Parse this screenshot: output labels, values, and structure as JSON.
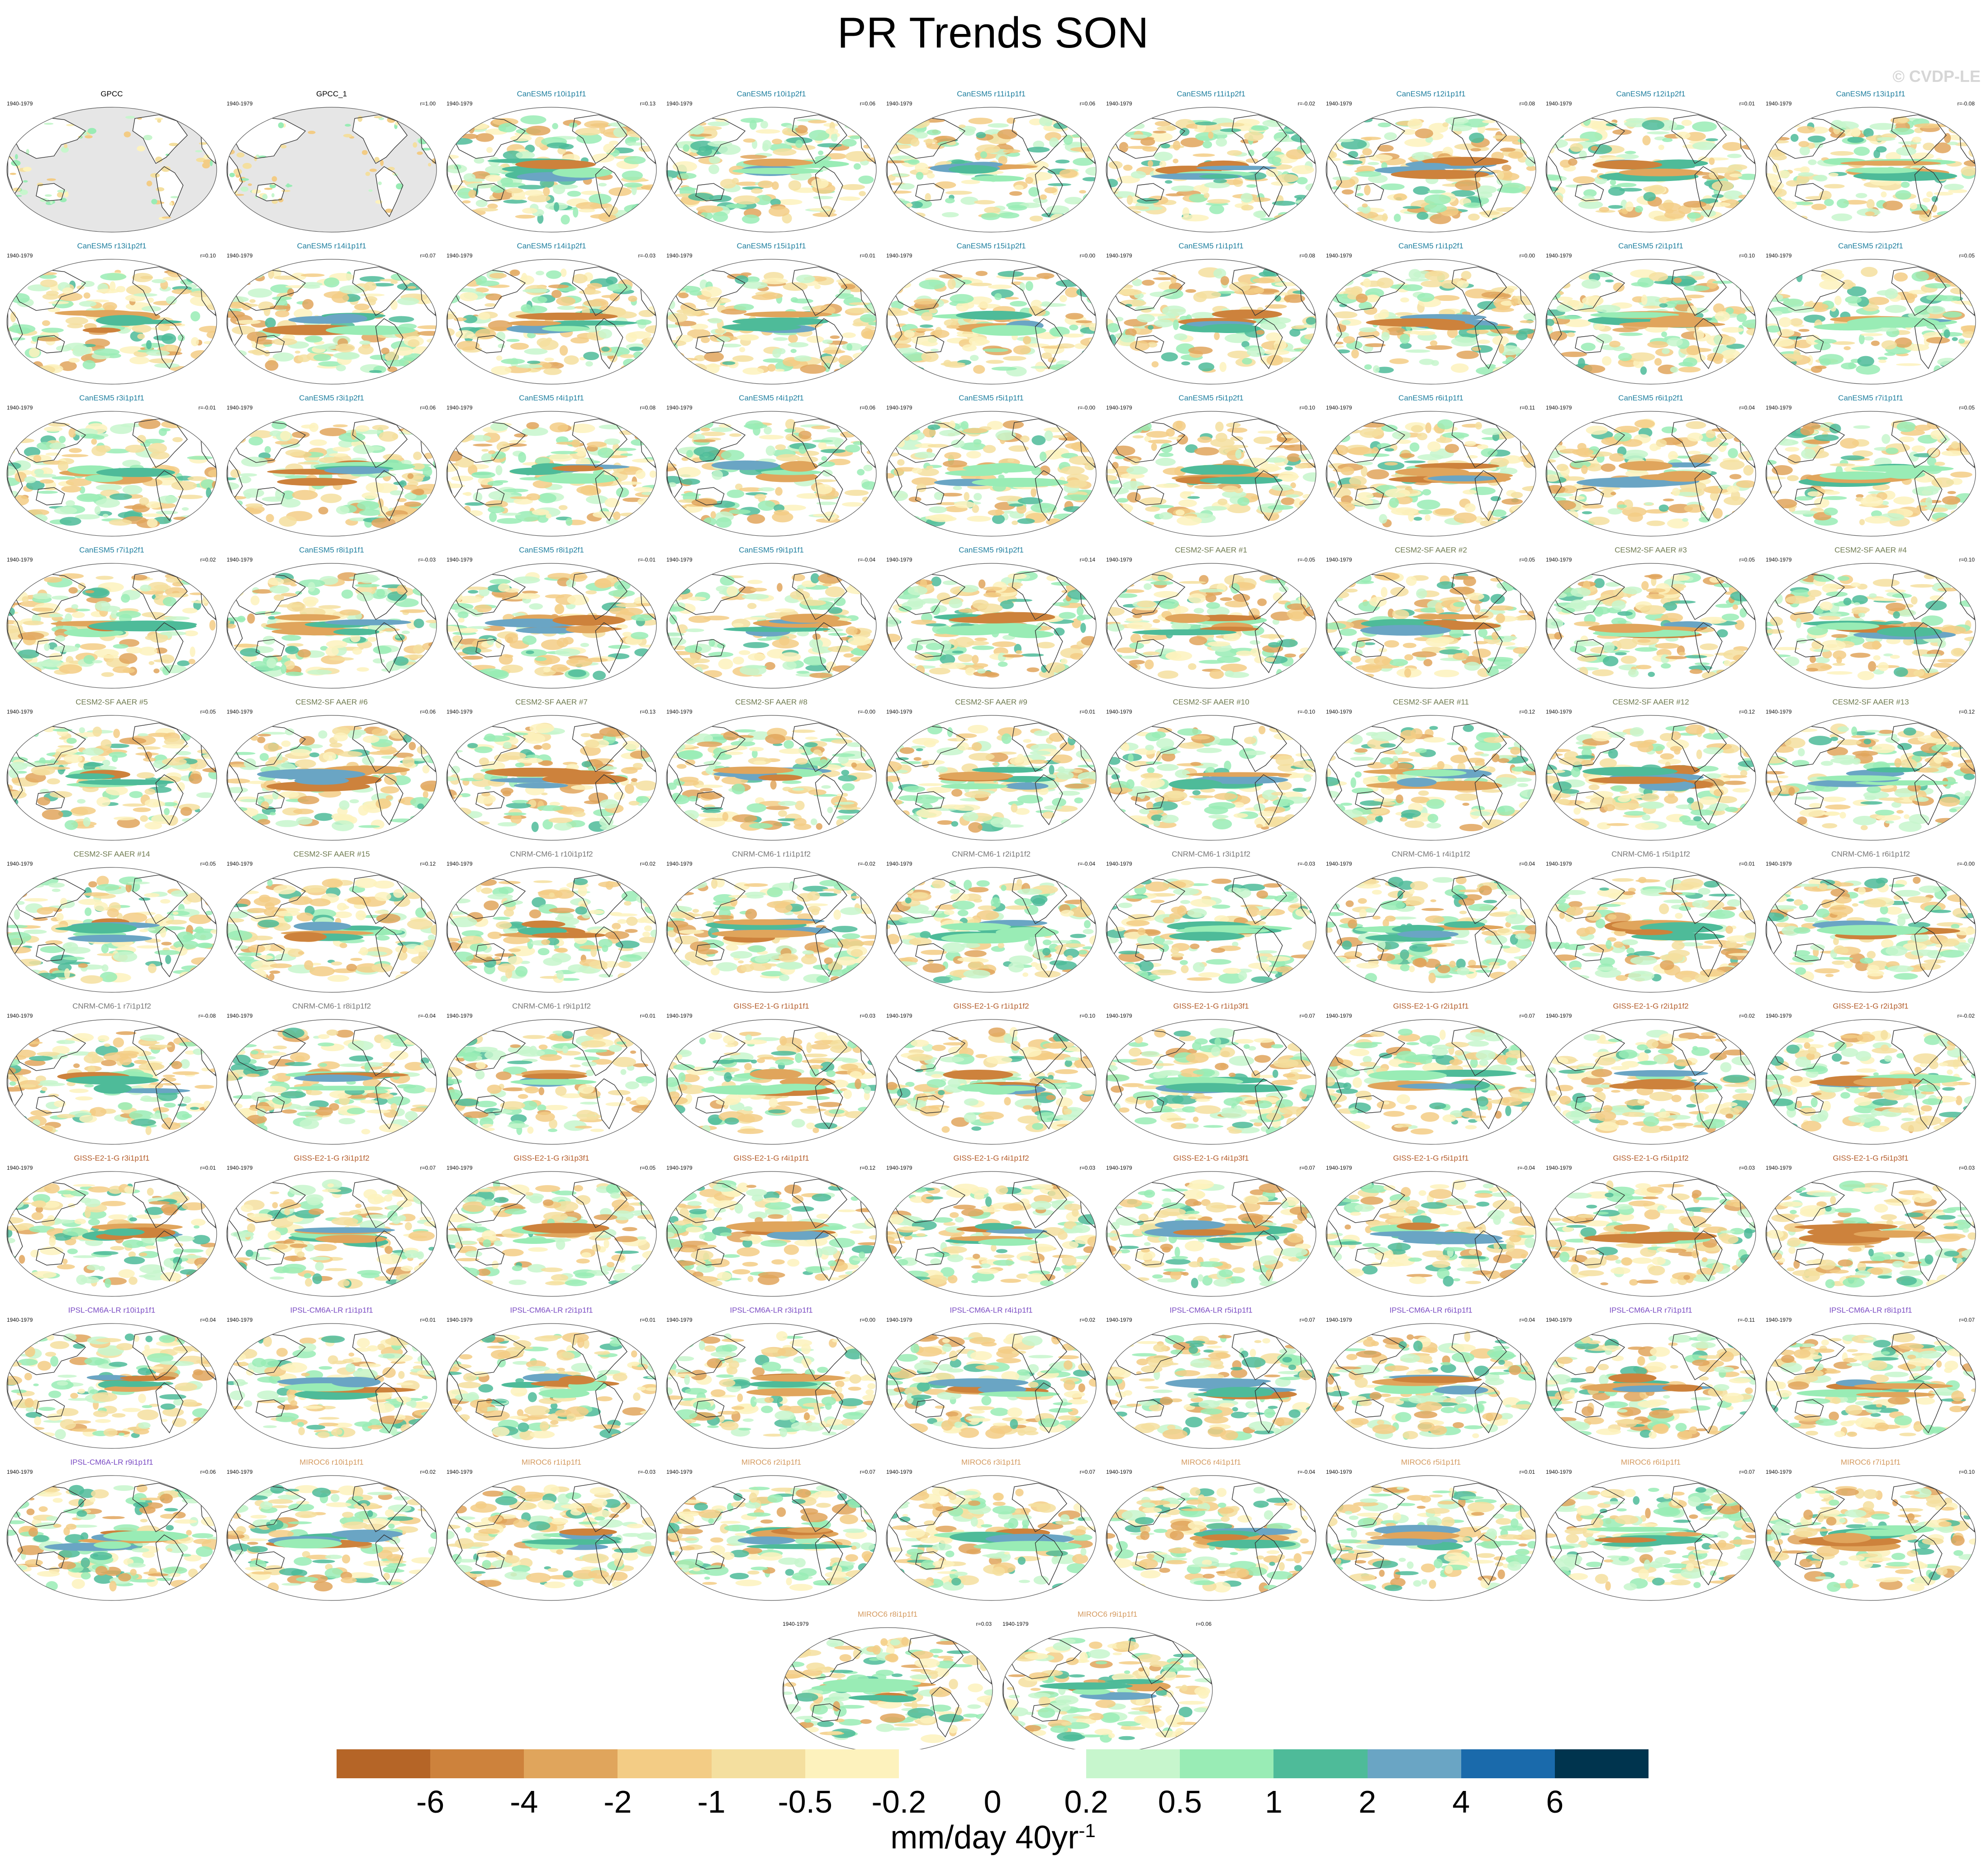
{
  "title": "PR Trends SON",
  "watermark": "© CVDP-LE",
  "colors": {
    "canesm": "#1f7f9f",
    "cesm": "#6e7a4f",
    "cnrm": "#777777",
    "giss": "#b35c2a",
    "ipsl": "#7b4cc4",
    "miroc": "#d49a5f",
    "obs": "#000000",
    "ocean_obs": "#e6e6e6",
    "coast": "#333333"
  },
  "panels": [
    {
      "title": "GPCC",
      "years": "1940-1979",
      "r": "",
      "group": "obs"
    },
    {
      "title": "GPCC_1",
      "years": "1940-1979",
      "r": "r=1.00",
      "group": "obs"
    },
    {
      "title": "CanESM5 r10i1p1f1",
      "years": "1940-1979",
      "r": "r=0.13",
      "group": "canesm"
    },
    {
      "title": "CanESM5 r10i1p2f1",
      "years": "1940-1979",
      "r": "r=0.06",
      "group": "canesm"
    },
    {
      "title": "CanESM5 r11i1p1f1",
      "years": "1940-1979",
      "r": "r=0.06",
      "group": "canesm"
    },
    {
      "title": "CanESM5 r11i1p2f1",
      "years": "1940-1979",
      "r": "r=-0.02",
      "group": "canesm"
    },
    {
      "title": "CanESM5 r12i1p1f1",
      "years": "1940-1979",
      "r": "r=0.08",
      "group": "canesm"
    },
    {
      "title": "CanESM5 r12i1p2f1",
      "years": "1940-1979",
      "r": "r=0.01",
      "group": "canesm"
    },
    {
      "title": "CanESM5 r13i1p1f1",
      "years": "1940-1979",
      "r": "r=-0.08",
      "group": "canesm"
    },
    {
      "title": "CanESM5 r13i1p2f1",
      "years": "1940-1979",
      "r": "r=0.10",
      "group": "canesm"
    },
    {
      "title": "CanESM5 r14i1p1f1",
      "years": "1940-1979",
      "r": "r=0.07",
      "group": "canesm"
    },
    {
      "title": "CanESM5 r14i1p2f1",
      "years": "1940-1979",
      "r": "r=-0.03",
      "group": "canesm"
    },
    {
      "title": "CanESM5 r15i1p1f1",
      "years": "1940-1979",
      "r": "r=0.01",
      "group": "canesm"
    },
    {
      "title": "CanESM5 r15i1p2f1",
      "years": "1940-1979",
      "r": "r=0.00",
      "group": "canesm"
    },
    {
      "title": "CanESM5 r1i1p1f1",
      "years": "1940-1979",
      "r": "r=0.08",
      "group": "canesm"
    },
    {
      "title": "CanESM5 r1i1p2f1",
      "years": "1940-1979",
      "r": "r=0.00",
      "group": "canesm"
    },
    {
      "title": "CanESM5 r2i1p1f1",
      "years": "1940-1979",
      "r": "r=0.10",
      "group": "canesm"
    },
    {
      "title": "CanESM5 r2i1p2f1",
      "years": "1940-1979",
      "r": "r=0.05",
      "group": "canesm"
    },
    {
      "title": "CanESM5 r3i1p1f1",
      "years": "1940-1979",
      "r": "r=-0.01",
      "group": "canesm"
    },
    {
      "title": "CanESM5 r3i1p2f1",
      "years": "1940-1979",
      "r": "r=0.06",
      "group": "canesm"
    },
    {
      "title": "CanESM5 r4i1p1f1",
      "years": "1940-1979",
      "r": "r=0.08",
      "group": "canesm"
    },
    {
      "title": "CanESM5 r4i1p2f1",
      "years": "1940-1979",
      "r": "r=0.06",
      "group": "canesm"
    },
    {
      "title": "CanESM5 r5i1p1f1",
      "years": "1940-1979",
      "r": "r=-0.00",
      "group": "canesm"
    },
    {
      "title": "CanESM5 r5i1p2f1",
      "years": "1940-1979",
      "r": "r=0.10",
      "group": "canesm"
    },
    {
      "title": "CanESM5 r6i1p1f1",
      "years": "1940-1979",
      "r": "r=0.11",
      "group": "canesm"
    },
    {
      "title": "CanESM5 r6i1p2f1",
      "years": "1940-1979",
      "r": "r=0.04",
      "group": "canesm"
    },
    {
      "title": "CanESM5 r7i1p1f1",
      "years": "1940-1979",
      "r": "r=0.05",
      "group": "canesm"
    },
    {
      "title": "CanESM5 r7i1p2f1",
      "years": "1940-1979",
      "r": "r=0.02",
      "group": "canesm"
    },
    {
      "title": "CanESM5 r8i1p1f1",
      "years": "1940-1979",
      "r": "r=-0.03",
      "group": "canesm"
    },
    {
      "title": "CanESM5 r8i1p2f1",
      "years": "1940-1979",
      "r": "r=-0.01",
      "group": "canesm"
    },
    {
      "title": "CanESM5 r9i1p1f1",
      "years": "1940-1979",
      "r": "r=-0.04",
      "group": "canesm"
    },
    {
      "title": "CanESM5 r9i1p2f1",
      "years": "1940-1979",
      "r": "r=0.14",
      "group": "canesm"
    },
    {
      "title": "CESM2-SF AAER #1",
      "years": "1940-1979",
      "r": "r=-0.05",
      "group": "cesm"
    },
    {
      "title": "CESM2-SF AAER #2",
      "years": "1940-1979",
      "r": "r=0.05",
      "group": "cesm"
    },
    {
      "title": "CESM2-SF AAER #3",
      "years": "1940-1979",
      "r": "r=0.05",
      "group": "cesm"
    },
    {
      "title": "CESM2-SF AAER #4",
      "years": "1940-1979",
      "r": "r=0.10",
      "group": "cesm"
    },
    {
      "title": "CESM2-SF AAER #5",
      "years": "1940-1979",
      "r": "r=0.05",
      "group": "cesm"
    },
    {
      "title": "CESM2-SF AAER #6",
      "years": "1940-1979",
      "r": "r=0.06",
      "group": "cesm"
    },
    {
      "title": "CESM2-SF AAER #7",
      "years": "1940-1979",
      "r": "r=0.13",
      "group": "cesm"
    },
    {
      "title": "CESM2-SF AAER #8",
      "years": "1940-1979",
      "r": "r=-0.00",
      "group": "cesm"
    },
    {
      "title": "CESM2-SF AAER #9",
      "years": "1940-1979",
      "r": "r=0.01",
      "group": "cesm"
    },
    {
      "title": "CESM2-SF AAER #10",
      "years": "1940-1979",
      "r": "r=-0.10",
      "group": "cesm"
    },
    {
      "title": "CESM2-SF AAER #11",
      "years": "1940-1979",
      "r": "r=0.12",
      "group": "cesm"
    },
    {
      "title": "CESM2-SF AAER #12",
      "years": "1940-1979",
      "r": "r=0.12",
      "group": "cesm"
    },
    {
      "title": "CESM2-SF AAER #13",
      "years": "1940-1979",
      "r": "r=0.12",
      "group": "cesm"
    },
    {
      "title": "CESM2-SF AAER #14",
      "years": "1940-1979",
      "r": "r=0.05",
      "group": "cesm"
    },
    {
      "title": "CESM2-SF AAER #15",
      "years": "1940-1979",
      "r": "r=0.12",
      "group": "cesm"
    },
    {
      "title": "CNRM-CM6-1 r10i1p1f2",
      "years": "1940-1979",
      "r": "r=0.02",
      "group": "cnrm"
    },
    {
      "title": "CNRM-CM6-1 r1i1p1f2",
      "years": "1940-1979",
      "r": "r=-0.02",
      "group": "cnrm"
    },
    {
      "title": "CNRM-CM6-1 r2i1p1f2",
      "years": "1940-1979",
      "r": "r=-0.04",
      "group": "cnrm"
    },
    {
      "title": "CNRM-CM6-1 r3i1p1f2",
      "years": "1940-1979",
      "r": "r=-0.03",
      "group": "cnrm"
    },
    {
      "title": "CNRM-CM6-1 r4i1p1f2",
      "years": "1940-1979",
      "r": "r=0.04",
      "group": "cnrm"
    },
    {
      "title": "CNRM-CM6-1 r5i1p1f2",
      "years": "1940-1979",
      "r": "r=0.01",
      "group": "cnrm"
    },
    {
      "title": "CNRM-CM6-1 r6i1p1f2",
      "years": "1940-1979",
      "r": "r=-0.00",
      "group": "cnrm"
    },
    {
      "title": "CNRM-CM6-1 r7i1p1f2",
      "years": "1940-1979",
      "r": "r=-0.08",
      "group": "cnrm"
    },
    {
      "title": "CNRM-CM6-1 r8i1p1f2",
      "years": "1940-1979",
      "r": "r=-0.04",
      "group": "cnrm"
    },
    {
      "title": "CNRM-CM6-1 r9i1p1f2",
      "years": "1940-1979",
      "r": "r=0.01",
      "group": "cnrm"
    },
    {
      "title": "GISS-E2-1-G r1i1p1f1",
      "years": "1940-1979",
      "r": "r=0.03",
      "group": "giss"
    },
    {
      "title": "GISS-E2-1-G r1i1p1f2",
      "years": "1940-1979",
      "r": "r=0.10",
      "group": "giss"
    },
    {
      "title": "GISS-E2-1-G r1i1p3f1",
      "years": "1940-1979",
      "r": "r=0.07",
      "group": "giss"
    },
    {
      "title": "GISS-E2-1-G r2i1p1f1",
      "years": "1940-1979",
      "r": "r=0.07",
      "group": "giss"
    },
    {
      "title": "GISS-E2-1-G r2i1p1f2",
      "years": "1940-1979",
      "r": "r=0.02",
      "group": "giss"
    },
    {
      "title": "GISS-E2-1-G r2i1p3f1",
      "years": "1940-1979",
      "r": "r=-0.02",
      "group": "giss"
    },
    {
      "title": "GISS-E2-1-G r3i1p1f1",
      "years": "1940-1979",
      "r": "r=0.01",
      "group": "giss"
    },
    {
      "title": "GISS-E2-1-G r3i1p1f2",
      "years": "1940-1979",
      "r": "r=0.07",
      "group": "giss"
    },
    {
      "title": "GISS-E2-1-G r3i1p3f1",
      "years": "1940-1979",
      "r": "r=0.05",
      "group": "giss"
    },
    {
      "title": "GISS-E2-1-G r4i1p1f1",
      "years": "1940-1979",
      "r": "r=0.12",
      "group": "giss"
    },
    {
      "title": "GISS-E2-1-G r4i1p1f2",
      "years": "1940-1979",
      "r": "r=0.03",
      "group": "giss"
    },
    {
      "title": "GISS-E2-1-G r4i1p3f1",
      "years": "1940-1979",
      "r": "r=0.07",
      "group": "giss"
    },
    {
      "title": "GISS-E2-1-G r5i1p1f1",
      "years": "1940-1979",
      "r": "r=-0.04",
      "group": "giss"
    },
    {
      "title": "GISS-E2-1-G r5i1p1f2",
      "years": "1940-1979",
      "r": "r=0.03",
      "group": "giss"
    },
    {
      "title": "GISS-E2-1-G r5i1p3f1",
      "years": "1940-1979",
      "r": "r=0.03",
      "group": "giss"
    },
    {
      "title": "IPSL-CM6A-LR r10i1p1f1",
      "years": "1940-1979",
      "r": "r=0.04",
      "group": "ipsl"
    },
    {
      "title": "IPSL-CM6A-LR r1i1p1f1",
      "years": "1940-1979",
      "r": "r=0.01",
      "group": "ipsl"
    },
    {
      "title": "IPSL-CM6A-LR r2i1p1f1",
      "years": "1940-1979",
      "r": "r=0.01",
      "group": "ipsl"
    },
    {
      "title": "IPSL-CM6A-LR r3i1p1f1",
      "years": "1940-1979",
      "r": "r=0.00",
      "group": "ipsl"
    },
    {
      "title": "IPSL-CM6A-LR r4i1p1f1",
      "years": "1940-1979",
      "r": "r=0.02",
      "group": "ipsl"
    },
    {
      "title": "IPSL-CM6A-LR r5i1p1f1",
      "years": "1940-1979",
      "r": "r=0.07",
      "group": "ipsl"
    },
    {
      "title": "IPSL-CM6A-LR r6i1p1f1",
      "years": "1940-1979",
      "r": "r=0.04",
      "group": "ipsl"
    },
    {
      "title": "IPSL-CM6A-LR r7i1p1f1",
      "years": "1940-1979",
      "r": "r=-0.11",
      "group": "ipsl"
    },
    {
      "title": "IPSL-CM6A-LR r8i1p1f1",
      "years": "1940-1979",
      "r": "r=0.07",
      "group": "ipsl"
    },
    {
      "title": "IPSL-CM6A-LR r9i1p1f1",
      "years": "1940-1979",
      "r": "r=0.06",
      "group": "ipsl"
    },
    {
      "title": "MIROC6 r10i1p1f1",
      "years": "1940-1979",
      "r": "r=0.02",
      "group": "miroc"
    },
    {
      "title": "MIROC6 r1i1p1f1",
      "years": "1940-1979",
      "r": "r=-0.03",
      "group": "miroc"
    },
    {
      "title": "MIROC6 r2i1p1f1",
      "years": "1940-1979",
      "r": "r=0.07",
      "group": "miroc"
    },
    {
      "title": "MIROC6 r3i1p1f1",
      "years": "1940-1979",
      "r": "r=0.07",
      "group": "miroc"
    },
    {
      "title": "MIROC6 r4i1p1f1",
      "years": "1940-1979",
      "r": "r=-0.04",
      "group": "miroc"
    },
    {
      "title": "MIROC6 r5i1p1f1",
      "years": "1940-1979",
      "r": "r=0.01",
      "group": "miroc"
    },
    {
      "title": "MIROC6 r6i1p1f1",
      "years": "1940-1979",
      "r": "r=0.07",
      "group": "miroc"
    },
    {
      "title": "MIROC6 r7i1p1f1",
      "years": "1940-1979",
      "r": "r=0.10",
      "group": "miroc"
    },
    {
      "title": "MIROC6 r8i1p1f1",
      "years": "1940-1979",
      "r": "r=0.03",
      "group": "miroc"
    },
    {
      "title": "MIROC6 r9i1p1f1",
      "years": "1940-1979",
      "r": "r=0.06",
      "group": "miroc"
    }
  ],
  "colorbar": {
    "colors": [
      "#b56527",
      "#cd823c",
      "#e0a55c",
      "#f3cc85",
      "#f4df9f",
      "#fdf2bd",
      "#ffffff",
      "#ffffff",
      "#c7f6cd",
      "#99ecb5",
      "#4ebb99",
      "#6aa5c4",
      "#1a6aab",
      "#00344e"
    ],
    "labels": [
      "-6",
      "-4",
      "-2",
      "-1",
      "-0.5",
      "-0.2",
      "0",
      "0.2",
      "0.5",
      "1",
      "2",
      "4",
      "6"
    ],
    "units_base": "mm/day 40yr",
    "units_sup": "-1"
  }
}
